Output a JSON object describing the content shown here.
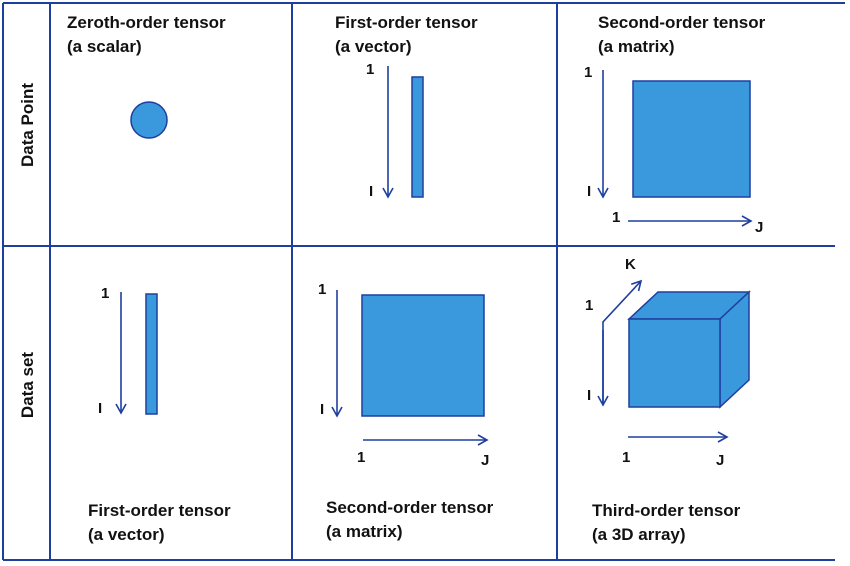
{
  "colors": {
    "grid": "#1f3f9f",
    "fill": "#3a98dc",
    "stroke": "#1f3f9f",
    "text": "#111111"
  },
  "rows": {
    "data_point": "Data Point",
    "data_set": "Data set"
  },
  "cells": {
    "scalar": {
      "title_line1": "Zeroth-order tensor",
      "title_line2": "(a scalar)"
    },
    "vector_point": {
      "title_line1": "First-order tensor",
      "title_line2": "(a vector)",
      "axis_start": "1",
      "axis_end": "I"
    },
    "matrix_point": {
      "title_line1": "Second-order tensor",
      "title_line2": "(a matrix)",
      "axis_i_start": "1",
      "axis_i_end": "I",
      "axis_j_start": "1",
      "axis_j_end": "J"
    },
    "vector_set": {
      "title_line1": "First-order tensor",
      "title_line2": "(a vector)",
      "axis_start": "1",
      "axis_end": "I"
    },
    "matrix_set": {
      "title_line1": "Second-order tensor",
      "title_line2": "(a matrix)",
      "axis_i_start": "1",
      "axis_i_end": "I",
      "axis_j_start": "1",
      "axis_j_end": "J"
    },
    "array3d_set": {
      "title_line1": "Third-order tensor",
      "title_line2": "(a 3D array)",
      "axis_i_start": "1",
      "axis_i_end": "I",
      "axis_j_start": "1",
      "axis_j_end": "J",
      "axis_k_end": "K"
    }
  }
}
